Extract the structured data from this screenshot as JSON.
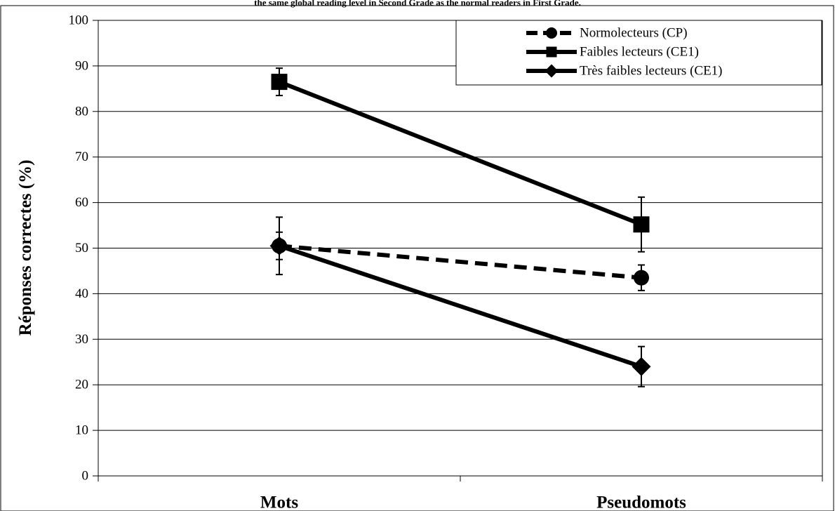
{
  "chart_data": {
    "type": "line",
    "title": "the same global reading level in Second Grade as the normal readers in First Grade.",
    "ylabel": "Réponses correctes (%)",
    "xlabel": "",
    "categories": [
      "Mots",
      "Pseudomots"
    ],
    "ylim": [
      0,
      100
    ],
    "yticks": [
      0,
      10,
      20,
      30,
      40,
      50,
      60,
      70,
      80,
      90,
      100
    ],
    "grid": true,
    "legend_position": "top-right",
    "series": [
      {
        "name": "Normolecteurs (CP)",
        "marker": "circle",
        "line": "dashed",
        "values": [
          50.5,
          43.5
        ],
        "error": [
          3,
          2.8
        ]
      },
      {
        "name": "Faibles lecteurs (CE1)",
        "marker": "square",
        "line": "solid",
        "values": [
          86.5,
          55.2
        ],
        "error": [
          3,
          6
        ]
      },
      {
        "name": "Très faibles lecteurs (CE1)",
        "marker": "diamond",
        "line": "solid",
        "values": [
          50.5,
          24
        ],
        "error": [
          6.3,
          4.4
        ]
      }
    ]
  }
}
